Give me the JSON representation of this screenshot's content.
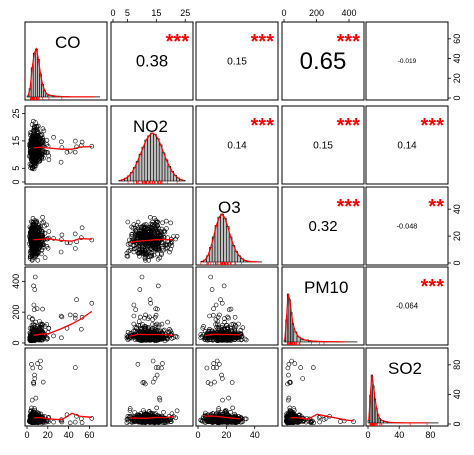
{
  "chart_data": {
    "type": "scatter-matrix",
    "variables": [
      "CO",
      "NO2",
      "O3",
      "PM10",
      "SO2"
    ],
    "axes": {
      "CO": {
        "range": [
          0,
          75
        ],
        "ticks": [
          "0",
          "20",
          "40",
          "60"
        ]
      },
      "NO2": {
        "range": [
          0,
          27
        ],
        "ticks": [
          "0",
          "5",
          "15",
          "25"
        ]
      },
      "O3": {
        "range": [
          0,
          55
        ],
        "ticks": [
          "0",
          "20",
          "40"
        ]
      },
      "PM10": {
        "range": [
          0,
          480
        ],
        "ticks": [
          "0",
          "200",
          "400"
        ]
      },
      "SO2": {
        "range": [
          0,
          100
        ],
        "ticks": [
          "0",
          "40",
          "80"
        ]
      }
    },
    "tick_labels": {
      "top": {
        "NO2": [
          "0",
          "5",
          "15",
          "25"
        ],
        "PM10": [
          "0",
          "200",
          "400"
        ]
      },
      "bottom": {
        "CO": [
          "0",
          "20",
          "40",
          "60"
        ],
        "O3": [
          "0",
          "20",
          "40"
        ],
        "SO2": [
          "0",
          "40",
          "80"
        ]
      },
      "left": {
        "NO2": [
          "0",
          "5",
          "15",
          "25"
        ],
        "PM10": [
          "0",
          "200",
          "400"
        ]
      },
      "right": {
        "CO": [
          "0",
          "20",
          "40",
          "60"
        ],
        "O3": [
          "0",
          "20",
          "40"
        ],
        "SO2": [
          "0",
          "40",
          "80"
        ]
      }
    },
    "correlations": [
      {
        "row": "CO",
        "col": "NO2",
        "value": "0.38",
        "stars": "***"
      },
      {
        "row": "CO",
        "col": "O3",
        "value": "0.15",
        "stars": "***"
      },
      {
        "row": "CO",
        "col": "PM10",
        "value": "0.65",
        "stars": "***"
      },
      {
        "row": "CO",
        "col": "SO2",
        "value": "-0.019",
        "stars": ""
      },
      {
        "row": "NO2",
        "col": "O3",
        "value": "0.14",
        "stars": "***"
      },
      {
        "row": "NO2",
        "col": "PM10",
        "value": "0.15",
        "stars": "***"
      },
      {
        "row": "NO2",
        "col": "SO2",
        "value": "0.14",
        "stars": "***"
      },
      {
        "row": "O3",
        "col": "PM10",
        "value": "0.32",
        "stars": "***"
      },
      {
        "row": "O3",
        "col": "SO2",
        "value": "-0.048",
        "stars": "**"
      },
      {
        "row": "PM10",
        "col": "SO2",
        "value": "-0.064",
        "stars": "***"
      }
    ],
    "histograms": {
      "CO": {
        "bins": [
          0,
          2,
          4,
          6,
          8,
          10,
          12,
          14,
          16,
          18,
          20,
          25,
          30,
          40,
          50,
          60,
          70
        ],
        "counts": [
          5,
          40,
          140,
          210,
          230,
          180,
          110,
          60,
          30,
          15,
          8,
          4,
          2,
          1,
          1,
          1
        ]
      },
      "NO2": {
        "bins": [
          2,
          3,
          4,
          5,
          6,
          7,
          8,
          9,
          10,
          11,
          12,
          13,
          14,
          15,
          16,
          17,
          18,
          19,
          20,
          21,
          22,
          23,
          24,
          25
        ],
        "counts": [
          2,
          5,
          10,
          18,
          30,
          48,
          70,
          95,
          120,
          145,
          160,
          170,
          165,
          150,
          128,
          100,
          75,
          52,
          34,
          20,
          11,
          5,
          2
        ]
      },
      "O3": {
        "bins": [
          2,
          4,
          6,
          8,
          10,
          12,
          14,
          16,
          18,
          20,
          22,
          24,
          26,
          28,
          30,
          32,
          34,
          36,
          40,
          45
        ],
        "counts": [
          3,
          10,
          30,
          70,
          120,
          175,
          215,
          230,
          210,
          170,
          120,
          80,
          50,
          30,
          16,
          8,
          4,
          2,
          1
        ]
      },
      "PM10": {
        "bins": [
          0,
          10,
          20,
          30,
          40,
          50,
          60,
          80,
          100,
          150,
          200,
          300,
          450
        ],
        "counts": [
          10,
          120,
          260,
          230,
          160,
          100,
          55,
          28,
          12,
          5,
          2,
          1
        ]
      },
      "SO2": {
        "bins": [
          0,
          2,
          4,
          6,
          8,
          10,
          12,
          14,
          16,
          20,
          25,
          30,
          40,
          60,
          90
        ],
        "counts": [
          15,
          150,
          260,
          200,
          130,
          80,
          45,
          25,
          14,
          8,
          4,
          2,
          1,
          1
        ]
      }
    },
    "scatter_color": "#000000",
    "smooth_color": "#ff0000",
    "hist_fill": "#bebebe",
    "star_color": "#ff0000"
  }
}
